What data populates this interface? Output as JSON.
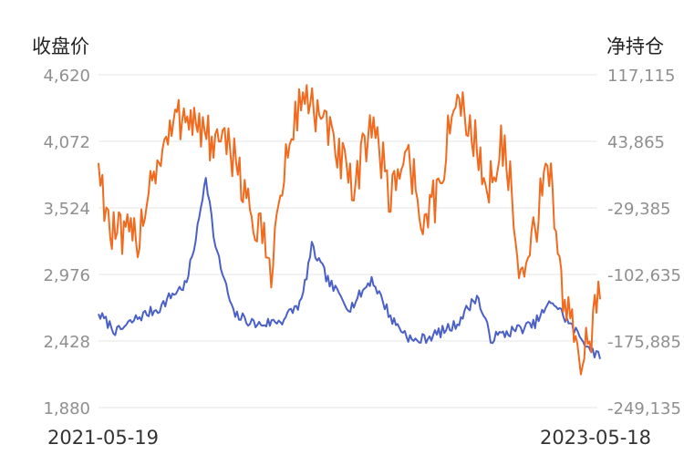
{
  "chart_data": {
    "type": "line",
    "left_axis_title": "收盘价",
    "right_axis_title": "净持仓",
    "x_range": [
      "2021-05-19",
      "2023-05-18"
    ],
    "x_tick_labels": [
      "2021-05-19",
      "2023-05-18"
    ],
    "left_axis": {
      "ticks": [
        "4,620",
        "4,072",
        "3,524",
        "2,976",
        "2,428",
        "1,880"
      ],
      "range": [
        1880,
        4620
      ]
    },
    "right_axis": {
      "ticks": [
        "117,115",
        "43,865",
        "-29,385",
        "-102,635",
        "-175,885",
        "-249,135"
      ],
      "range": [
        -249135,
        117115
      ]
    },
    "grid": true,
    "series": [
      {
        "axis": "left",
        "color": "#4a60c6",
        "x": [
          "2021-05-19",
          "2021-06-15",
          "2021-07-15",
          "2021-08-16",
          "2021-09-01",
          "2021-09-24",
          "2021-10-10",
          "2021-10-22",
          "2021-11-05",
          "2021-12-01",
          "2022-01-05",
          "2022-02-10",
          "2022-03-10",
          "2022-03-25",
          "2022-04-20",
          "2022-05-20",
          "2022-06-20",
          "2022-07-20",
          "2022-08-20",
          "2022-09-20",
          "2022-10-20",
          "2022-11-20",
          "2022-12-10",
          "2023-01-15",
          "2023-02-10",
          "2023-03-10",
          "2023-04-10",
          "2023-05-18"
        ],
        "values": [
          2650,
          2500,
          2620,
          2700,
          2800,
          2900,
          3350,
          3800,
          3200,
          2650,
          2560,
          2600,
          2750,
          3200,
          2900,
          2700,
          2940,
          2600,
          2420,
          2480,
          2560,
          2800,
          2450,
          2520,
          2560,
          2760,
          2520,
          2280
        ]
      },
      {
        "axis": "right",
        "color": "#f16a1e",
        "x": [
          "2021-05-19",
          "2021-06-05",
          "2021-06-25",
          "2021-07-15",
          "2021-08-05",
          "2021-08-20",
          "2021-09-05",
          "2021-09-25",
          "2021-10-15",
          "2021-11-10",
          "2021-12-05",
          "2021-12-25",
          "2022-01-25",
          "2022-02-10",
          "2022-03-01",
          "2022-03-15",
          "2022-04-10",
          "2022-05-01",
          "2022-05-25",
          "2022-06-20",
          "2022-07-15",
          "2022-08-10",
          "2022-09-05",
          "2022-09-25",
          "2022-10-20",
          "2022-11-15",
          "2022-12-05",
          "2022-12-25",
          "2023-01-10",
          "2023-01-20",
          "2023-02-10",
          "2023-03-05",
          "2023-03-25",
          "2023-04-10",
          "2023-04-25",
          "2023-05-18"
        ],
        "values": [
          20000,
          -55000,
          -65000,
          -60000,
          10000,
          30000,
          60000,
          80000,
          55000,
          35000,
          30000,
          -35000,
          -90000,
          -5000,
          70000,
          100000,
          60000,
          35000,
          -20000,
          75000,
          -15000,
          35000,
          -50000,
          -10000,
          90000,
          55000,
          -20000,
          50000,
          -15000,
          -130000,
          -60000,
          20000,
          -125000,
          -175000,
          -190000,
          -130000
        ]
      }
    ]
  }
}
